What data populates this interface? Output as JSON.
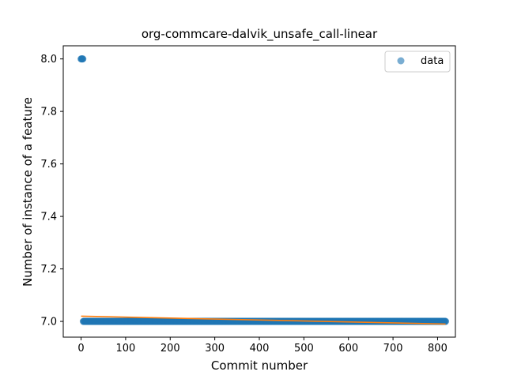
{
  "chart_data": {
    "type": "scatter",
    "title": "org-commcare-dalvik_unsafe_call-linear",
    "xlabel": "Commit number",
    "ylabel": "Number of instance of a feature",
    "xlim": [
      -40,
      840
    ],
    "ylim": [
      6.94,
      8.05
    ],
    "xticks": [
      0,
      100,
      200,
      300,
      400,
      500,
      600,
      700,
      800
    ],
    "xtick_labels": [
      "0",
      "100",
      "200",
      "300",
      "400",
      "500",
      "600",
      "700",
      "800"
    ],
    "yticks": [
      7.0,
      7.2,
      7.4,
      7.6,
      7.8,
      8.0
    ],
    "ytick_labels": [
      "7.0",
      "7.2",
      "7.4",
      "7.6",
      "7.8",
      "8.0"
    ],
    "grid": false,
    "legend_position": "top-right",
    "series": [
      {
        "name": "data",
        "kind": "scatter",
        "color": "#1f77b4",
        "points": [
          [
            0,
            8.0
          ],
          [
            1,
            8.0
          ],
          [
            2,
            8.0
          ],
          [
            3,
            8.0
          ],
          [
            4,
            8.0
          ]
        ],
        "constant_run": {
          "x_start": 5,
          "x_end": 818,
          "y": 7.0
        }
      },
      {
        "kind": "line",
        "color": "#ff7f0e",
        "x": [
          0,
          818
        ],
        "y": [
          7.02,
          6.99
        ]
      }
    ],
    "legend": [
      {
        "label": "data",
        "color": "#1f77b4",
        "marker": "circle"
      }
    ]
  }
}
